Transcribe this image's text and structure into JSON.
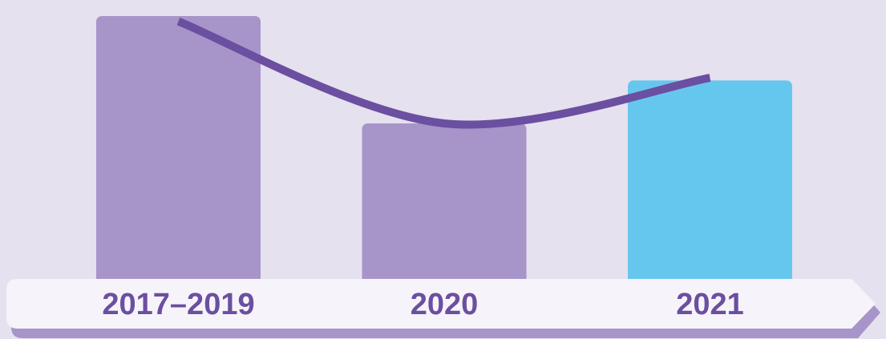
{
  "chart_data": {
    "type": "bar",
    "categories": [
      "2017–2019",
      "2020",
      "2021"
    ],
    "values": [
      100,
      60,
      76
    ],
    "colors": [
      "#a795c9",
      "#a795c9",
      "#66c7ee"
    ],
    "ylim": [
      0,
      100
    ],
    "line": {
      "values": [
        98,
        60,
        77
      ],
      "color": "#6b4fa0"
    }
  }
}
